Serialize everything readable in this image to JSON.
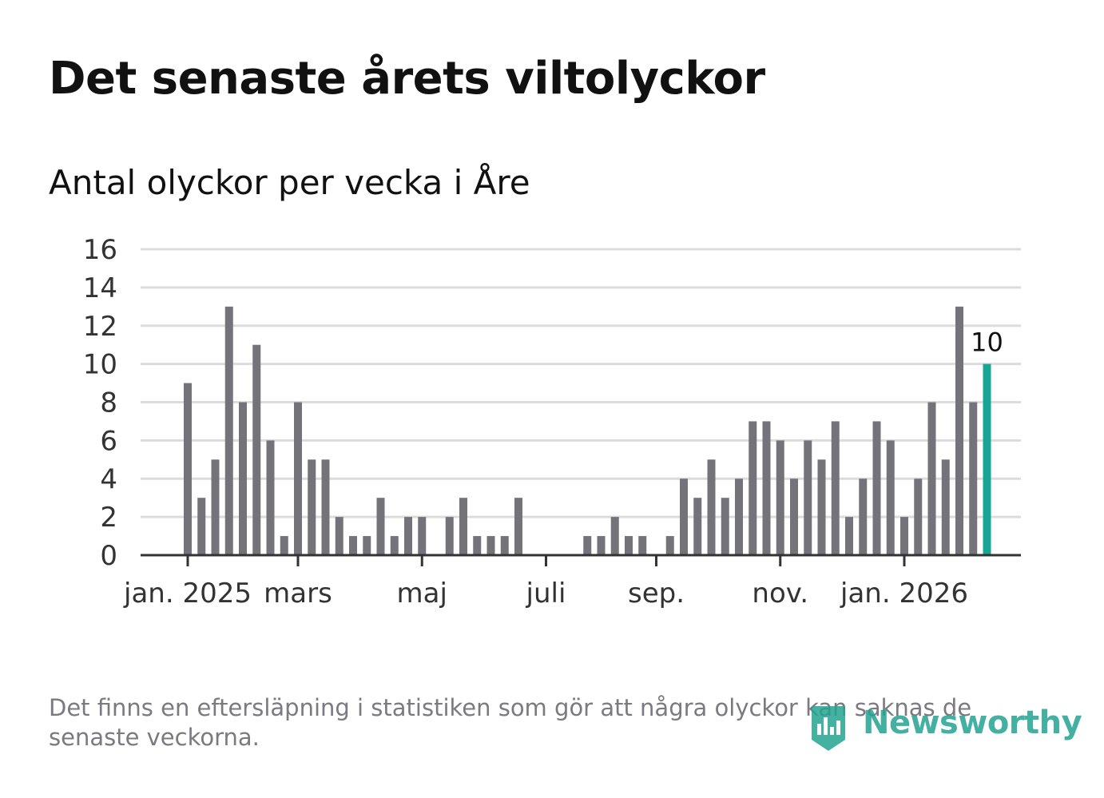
{
  "title": "Det senaste årets viltolyckor",
  "subtitle": "Antal olyckor per vecka i Åre",
  "footnote": "Det finns en eftersläpning i statistiken som gör att några olyckor kan saknas de senaste veckorna.",
  "logo": {
    "name": "Newsworthy",
    "icon": "newsworthy-logo-icon"
  },
  "colors": {
    "bar": "#75737a",
    "highlight": "#17a594",
    "grid": "#dcdcdc",
    "axis": "#333333",
    "text": "#333333"
  },
  "chart_data": {
    "type": "bar",
    "title": "Det senaste årets viltolyckor",
    "subtitle": "Antal olyckor per vecka i Åre",
    "xlabel": "",
    "ylabel": "",
    "ylim": [
      0,
      16
    ],
    "yticks": [
      0,
      2,
      4,
      6,
      8,
      10,
      12,
      14,
      16
    ],
    "grid": true,
    "xtick_labels": [
      {
        "label": "jan. 2025",
        "week_index": 0
      },
      {
        "label": "mars",
        "week_index": 8
      },
      {
        "label": "maj",
        "week_index": 17
      },
      {
        "label": "juli",
        "week_index": 26
      },
      {
        "label": "sep.",
        "week_index": 34
      },
      {
        "label": "nov.",
        "week_index": 43
      },
      {
        "label": "jan. 2026",
        "week_index": 52
      }
    ],
    "series": [
      {
        "name": "Antal olyckor",
        "values": [
          9,
          3,
          5,
          13,
          8,
          11,
          6,
          1,
          8,
          5,
          5,
          2,
          1,
          1,
          3,
          1,
          2,
          2,
          0,
          2,
          3,
          1,
          1,
          1,
          3,
          0,
          0,
          0,
          0,
          1,
          1,
          2,
          1,
          1,
          0,
          1,
          4,
          3,
          5,
          3,
          4,
          7,
          7,
          6,
          4,
          6,
          5,
          7,
          2,
          4,
          7,
          6,
          2,
          4,
          8,
          5,
          13,
          8,
          10
        ]
      }
    ],
    "highlight": {
      "index": 58,
      "label": "10"
    }
  }
}
